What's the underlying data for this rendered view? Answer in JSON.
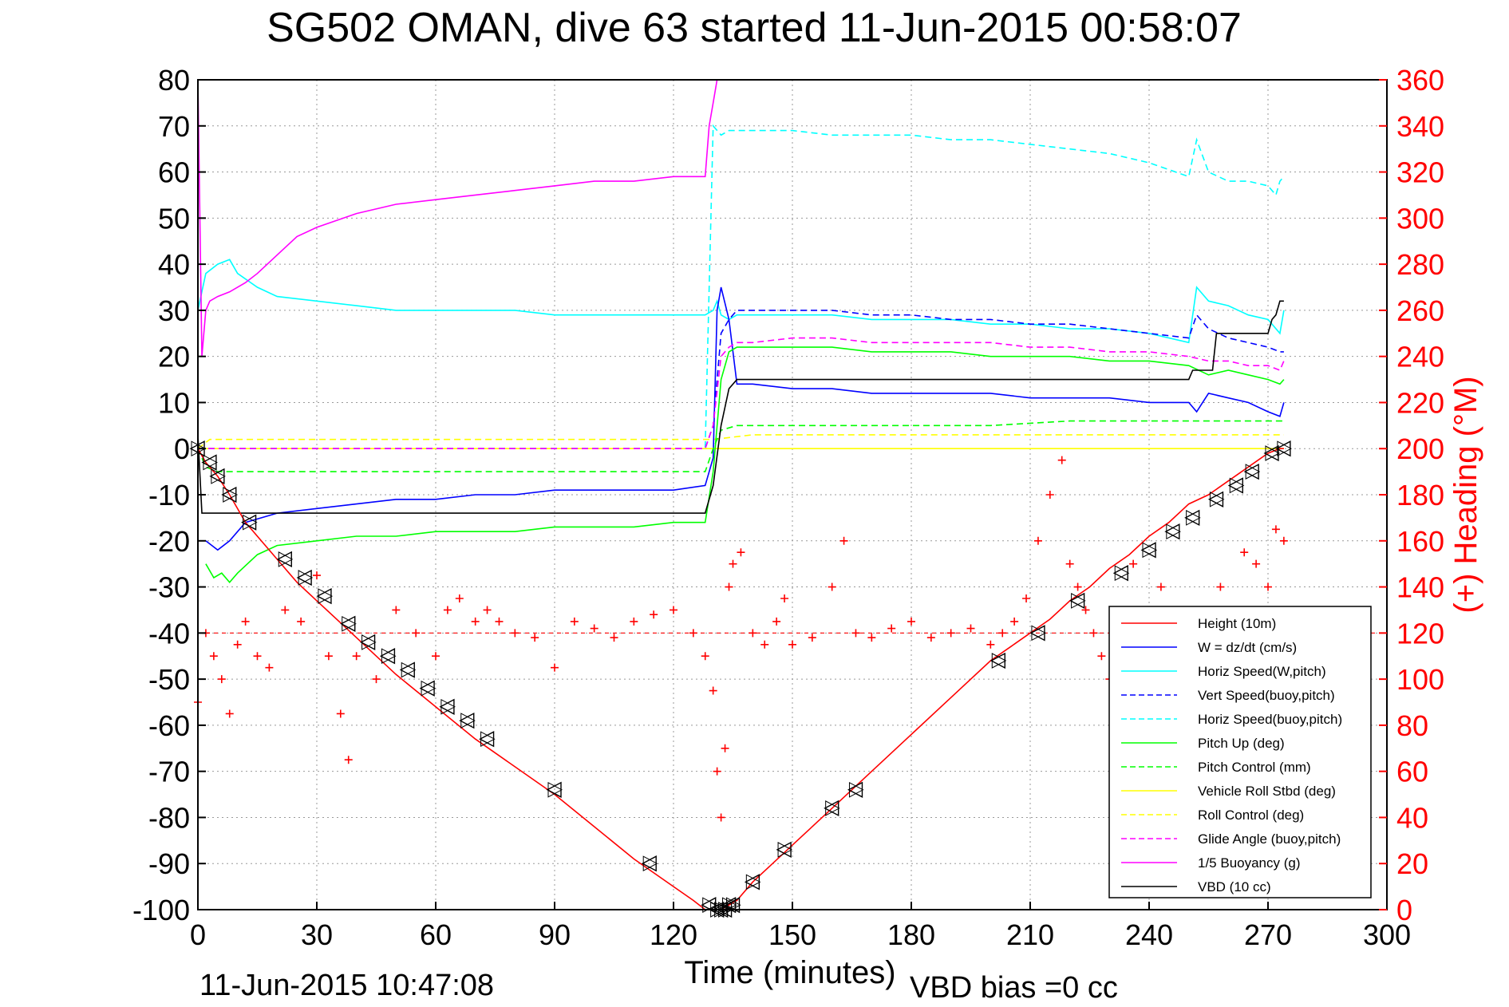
{
  "chart_data": {
    "type": "line",
    "title": "SG502 OMAN, dive 63 started 11-Jun-2015 00:58:07",
    "xlabel": "Time (minutes)",
    "ylabel_right": "(+) Heading (°M)",
    "footer_left": "11-Jun-2015 10:47:08",
    "footer_right": "VBD bias =0 cc",
    "xlim": [
      0,
      300
    ],
    "ylim": [
      -100,
      80
    ],
    "ylim_right": [
      0,
      360
    ],
    "x_ticks": [
      "0",
      "30",
      "60",
      "90",
      "120",
      "150",
      "180",
      "210",
      "240",
      "270",
      "300"
    ],
    "y_ticks": [
      "80",
      "70",
      "60",
      "50",
      "40",
      "30",
      "20",
      "10",
      "0",
      "-10",
      "-20",
      "-30",
      "-40",
      "-50",
      "-60",
      "-70",
      "-80",
      "-90",
      "-100"
    ],
    "y_right_ticks": [
      "360",
      "340",
      "320",
      "300",
      "280",
      "260",
      "240",
      "220",
      "200",
      "180",
      "160",
      "140",
      "120",
      "100",
      "80",
      "60",
      "40",
      "20",
      "0"
    ],
    "grid": true,
    "legend_position": "bottom-right",
    "colors": {
      "red": "#ff0000",
      "blue": "#0000ff",
      "cyan": "#00ffff",
      "green": "#00ff00",
      "yellow": "#ffff00",
      "magenta": "#ff00ff",
      "black": "#000000",
      "axis_right": "#ff0000"
    },
    "series": [
      {
        "name": "Height (10m)",
        "color": "#ff0000",
        "style": "solid",
        "x": [
          0,
          2,
          5,
          8,
          12,
          20,
          25,
          30,
          40,
          50,
          60,
          70,
          80,
          90,
          100,
          110,
          120,
          125,
          128,
          130,
          132,
          134,
          136,
          140,
          145,
          150,
          160,
          170,
          180,
          190,
          200,
          205,
          210,
          215,
          220,
          225,
          230,
          235,
          240,
          245,
          250,
          255,
          260,
          265,
          270,
          273,
          274
        ],
        "y": [
          0,
          -3,
          -6,
          -10,
          -16,
          -24,
          -29,
          -33,
          -41,
          -49,
          -56,
          -63,
          -69,
          -75,
          -82,
          -89,
          -95,
          -98,
          -100,
          -100,
          -100,
          -99,
          -98,
          -94,
          -90,
          -86,
          -78,
          -70,
          -62,
          -54,
          -46,
          -43,
          -40,
          -37,
          -33,
          -30,
          -26,
          -23,
          -19,
          -16,
          -12,
          -10,
          -7,
          -4,
          -1,
          0,
          0
        ]
      },
      {
        "name": "W = dz/dt (cm/s)",
        "color": "#0000ff",
        "style": "solid",
        "x": [
          2,
          5,
          8,
          12,
          20,
          30,
          40,
          50,
          60,
          70,
          80,
          90,
          100,
          110,
          120,
          128,
          130,
          131,
          132,
          134,
          136,
          140,
          150,
          160,
          170,
          180,
          190,
          200,
          210,
          220,
          230,
          240,
          250,
          252,
          255,
          260,
          265,
          270,
          273,
          274
        ],
        "y": [
          -20,
          -22,
          -20,
          -16,
          -14,
          -13,
          -12,
          -11,
          -11,
          -10,
          -10,
          -9,
          -9,
          -9,
          -9,
          -8,
          -2,
          30,
          35,
          28,
          14,
          14,
          13,
          13,
          12,
          12,
          12,
          12,
          11,
          11,
          11,
          10,
          10,
          8,
          12,
          11,
          10,
          8,
          7,
          10
        ]
      },
      {
        "name": "Horiz Speed(W,pitch)",
        "color": "#00ffff",
        "style": "solid",
        "x": [
          0,
          2,
          5,
          8,
          10,
          15,
          20,
          30,
          40,
          50,
          60,
          70,
          80,
          90,
          100,
          110,
          120,
          128,
          130,
          131,
          132,
          134,
          136,
          140,
          150,
          160,
          170,
          180,
          190,
          200,
          210,
          220,
          230,
          240,
          250,
          252,
          255,
          260,
          265,
          270,
          273,
          274
        ],
        "y": [
          30,
          38,
          40,
          41,
          38,
          35,
          33,
          32,
          31,
          30,
          30,
          30,
          30,
          29,
          29,
          29,
          29,
          29,
          30,
          32,
          29,
          28,
          29,
          29,
          29,
          29,
          28,
          28,
          28,
          27,
          27,
          26,
          26,
          25,
          23,
          35,
          32,
          31,
          29,
          28,
          25,
          30
        ]
      },
      {
        "name": "Vert Speed(buoy,pitch)",
        "color": "#0000ff",
        "style": "dashed",
        "x": [
          0,
          128,
          130,
          132,
          134,
          136,
          140,
          150,
          160,
          170,
          180,
          190,
          200,
          210,
          220,
          230,
          240,
          250,
          252,
          255,
          260,
          265,
          270,
          273,
          274
        ],
        "y": [
          0,
          0,
          5,
          25,
          28,
          30,
          30,
          30,
          30,
          29,
          29,
          28,
          28,
          27,
          27,
          26,
          25,
          24,
          29,
          26,
          24,
          23,
          22,
          21,
          21
        ]
      },
      {
        "name": "Horiz Speed(buoy,pitch)",
        "color": "#00ffff",
        "style": "dashed",
        "x": [
          0,
          128,
          130,
          132,
          134,
          140,
          150,
          160,
          170,
          180,
          190,
          200,
          210,
          220,
          230,
          240,
          250,
          252,
          255,
          260,
          265,
          270,
          272,
          273,
          274
        ],
        "y": [
          0,
          0,
          70,
          68,
          69,
          69,
          69,
          68,
          68,
          68,
          67,
          67,
          66,
          65,
          64,
          62,
          59,
          67,
          60,
          58,
          58,
          57,
          55,
          58,
          59
        ]
      },
      {
        "name": "Pitch Up (deg)",
        "color": "#00ff00",
        "style": "solid",
        "x": [
          2,
          4,
          6,
          8,
          10,
          15,
          20,
          30,
          40,
          50,
          60,
          70,
          80,
          90,
          100,
          110,
          120,
          128,
          130,
          132,
          134,
          136,
          140,
          150,
          160,
          170,
          180,
          190,
          200,
          210,
          220,
          230,
          240,
          250,
          255,
          260,
          265,
          270,
          273,
          274
        ],
        "y": [
          -25,
          -28,
          -27,
          -29,
          -27,
          -23,
          -21,
          -20,
          -19,
          -19,
          -18,
          -18,
          -18,
          -17,
          -17,
          -17,
          -16,
          -16,
          -5,
          15,
          21,
          22,
          22,
          22,
          22,
          21,
          21,
          21,
          20,
          20,
          20,
          19,
          19,
          18,
          16,
          17,
          16,
          15,
          14,
          15
        ]
      },
      {
        "name": "Pitch Control (mm)",
        "color": "#00ff00",
        "style": "dashed",
        "x": [
          0,
          2,
          5,
          10,
          30,
          60,
          90,
          120,
          128,
          130,
          132,
          136,
          140,
          160,
          180,
          200,
          220,
          240,
          250,
          255,
          260,
          270,
          273,
          274
        ],
        "y": [
          0,
          -4,
          -5,
          -5,
          -5,
          -5,
          -5,
          -5,
          -5,
          0,
          4,
          5,
          5,
          5,
          5,
          5,
          6,
          6,
          6,
          6,
          6,
          6,
          6,
          6
        ]
      },
      {
        "name": "Vehicle Roll Stbd (deg)",
        "color": "#ffff00",
        "style": "solid",
        "x": [
          0,
          3,
          10,
          20,
          30,
          40,
          60,
          80,
          100,
          120,
          130,
          140,
          160,
          180,
          200,
          220,
          240,
          260,
          270,
          274
        ],
        "y": [
          0,
          0,
          0,
          0,
          0,
          0,
          0,
          0,
          0,
          0,
          0,
          0,
          0,
          0,
          0,
          0,
          0,
          0,
          0,
          0
        ]
      },
      {
        "name": "Roll Control (deg)",
        "color": "#ffff00",
        "style": "dashed",
        "x": [
          0,
          3,
          10,
          20,
          30,
          40,
          60,
          80,
          100,
          120,
          130,
          140,
          160,
          180,
          200,
          220,
          240,
          260,
          270,
          274
        ],
        "y": [
          0,
          2,
          2,
          2,
          2,
          2,
          2,
          2,
          2,
          2,
          2,
          3,
          3,
          3,
          3,
          3,
          3,
          3,
          3,
          3
        ]
      },
      {
        "name": "Glide Angle (buoy,pitch)",
        "color": "#ff00ff",
        "style": "dashed",
        "x": [
          0,
          128,
          130,
          132,
          134,
          136,
          140,
          150,
          160,
          170,
          180,
          190,
          200,
          210,
          220,
          230,
          240,
          250,
          255,
          260,
          265,
          270,
          273,
          274
        ],
        "y": [
          0,
          0,
          5,
          20,
          22,
          23,
          23,
          24,
          24,
          23,
          23,
          23,
          23,
          22,
          22,
          21,
          21,
          20,
          19,
          19,
          18,
          18,
          17,
          19
        ]
      },
      {
        "name": "1/5 Buoyancy (g)",
        "color": "#ff00ff",
        "style": "solid",
        "x": [
          0,
          1,
          2,
          3,
          5,
          8,
          12,
          15,
          20,
          25,
          30,
          40,
          50,
          60,
          70,
          80,
          90,
          100,
          110,
          120,
          127,
          128,
          129,
          130,
          131
        ],
        "y": [
          80,
          20,
          30,
          32,
          33,
          34,
          36,
          38,
          42,
          46,
          48,
          51,
          53,
          54,
          55,
          56,
          57,
          58,
          58,
          59,
          59,
          59,
          70,
          75,
          80
        ]
      },
      {
        "name": "VBD (10 cc)",
        "color": "#000000",
        "style": "solid",
        "x": [
          0,
          1,
          2,
          3,
          128,
          130,
          132,
          134,
          136,
          140,
          150,
          200,
          250,
          251,
          256,
          257,
          270,
          271,
          272,
          273,
          274
        ],
        "y": [
          3,
          -14,
          -14,
          -14,
          -14,
          -8,
          5,
          13,
          15,
          15,
          15,
          15,
          15,
          17,
          17,
          25,
          25,
          28,
          29,
          32,
          32
        ]
      }
    ],
    "heading": {
      "name": "(+) Heading (°M)",
      "color": "#ff0000",
      "reference_value": 120,
      "x": [
        0,
        2,
        4,
        6,
        8,
        10,
        12,
        15,
        18,
        22,
        26,
        30,
        33,
        36,
        38,
        40,
        45,
        50,
        55,
        60,
        63,
        66,
        70,
        73,
        76,
        80,
        85,
        90,
        95,
        100,
        105,
        110,
        115,
        120,
        125,
        128,
        130,
        131,
        132,
        133,
        134,
        135,
        137,
        140,
        143,
        146,
        148,
        150,
        155,
        160,
        163,
        166,
        170,
        175,
        180,
        185,
        190,
        195,
        200,
        203,
        206,
        209,
        212,
        215,
        218,
        220,
        222,
        224,
        226,
        228,
        230,
        233,
        236,
        238,
        240,
        243,
        246,
        249,
        252,
        255,
        258,
        261,
        264,
        267,
        270,
        272,
        274
      ],
      "y": [
        90,
        120,
        110,
        100,
        85,
        115,
        125,
        110,
        105,
        130,
        125,
        145,
        110,
        85,
        65,
        110,
        100,
        130,
        120,
        110,
        130,
        135,
        125,
        130,
        125,
        120,
        118,
        105,
        125,
        122,
        118,
        125,
        128,
        130,
        120,
        110,
        95,
        60,
        40,
        70,
        140,
        150,
        155,
        120,
        115,
        125,
        135,
        115,
        118,
        140,
        160,
        120,
        118,
        122,
        125,
        118,
        120,
        122,
        115,
        120,
        125,
        135,
        160,
        180,
        195,
        150,
        140,
        130,
        120,
        110,
        100,
        130,
        150,
        120,
        110,
        140,
        130,
        115,
        120,
        125,
        140,
        130,
        155,
        150,
        140,
        165,
        160
      ]
    },
    "waypoints": {
      "x": [
        0,
        3,
        5,
        8,
        13,
        22,
        27,
        32,
        38,
        43,
        48,
        53,
        58,
        63,
        68,
        73,
        90,
        114,
        129,
        131,
        132,
        133,
        134,
        135,
        140,
        148,
        160,
        166,
        202,
        212,
        222,
        233,
        240,
        246,
        251,
        257,
        262,
        266,
        271,
        274
      ],
      "y": [
        0,
        -3,
        -6,
        -10,
        -16,
        -24,
        -28,
        -32,
        -38,
        -42,
        -45,
        -48,
        -52,
        -56,
        -59,
        -63,
        -74,
        -90,
        -99,
        -100,
        -100,
        -100,
        -99,
        -99,
        -94,
        -87,
        -78,
        -74,
        -46,
        -40,
        -33,
        -27,
        -22,
        -18,
        -15,
        -11,
        -8,
        -5,
        -1,
        0
      ]
    }
  }
}
